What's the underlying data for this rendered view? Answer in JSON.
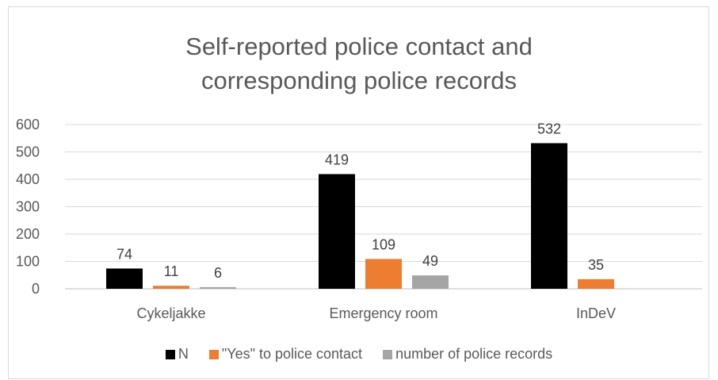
{
  "chart_data": {
    "type": "bar",
    "title_line1": "Self-reported police contact and",
    "title_line2": "corresponding police records",
    "categories": [
      "Cykeljakke",
      "Emergency room",
      "InDeV"
    ],
    "series": [
      {
        "name": "N",
        "values": [
          74,
          419,
          532
        ],
        "labels": [
          "74",
          "419",
          "532"
        ],
        "color": "#000000"
      },
      {
        "name": "\"Yes\" to police contact",
        "values": [
          11,
          109,
          35
        ],
        "labels": [
          "11",
          "109",
          "35"
        ],
        "color": "#ed7d31"
      },
      {
        "name": "number of police records",
        "values": [
          6,
          49,
          null
        ],
        "labels": [
          "6",
          "49",
          ""
        ],
        "color": "#a5a5a5"
      }
    ],
    "ylim": [
      0,
      600
    ],
    "yticks": [
      "0",
      "100",
      "200",
      "300",
      "400",
      "500",
      "600"
    ],
    "grid": true,
    "legend_position": "bottom"
  }
}
